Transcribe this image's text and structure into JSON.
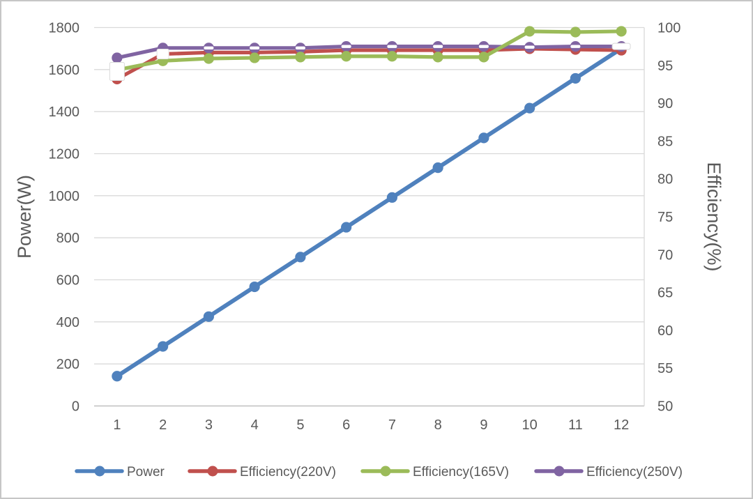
{
  "chart_data": {
    "type": "line",
    "title": "",
    "grid": true,
    "legend_position": "bottom",
    "categories": [
      "1",
      "2",
      "3",
      "4",
      "5",
      "6",
      "7",
      "8",
      "9",
      "10",
      "11",
      "12"
    ],
    "left_axis": {
      "title": "Power(W)",
      "min": 0,
      "max": 1800,
      "step": 200,
      "tick_labels": [
        "0",
        "200",
        "400",
        "600",
        "800",
        "1000",
        "1200",
        "1400",
        "1600",
        "1800"
      ]
    },
    "right_axis": {
      "title": "Efficiency(%)",
      "min": 50,
      "max": 100,
      "step": 5,
      "tick_labels": [
        "50",
        "55",
        "60",
        "65",
        "70",
        "75",
        "80",
        "85",
        "90",
        "95",
        "100"
      ]
    },
    "series": [
      {
        "name": "Power",
        "slug": "power",
        "axis": "left",
        "color": "#4F81BD",
        "marker": "circle",
        "values": [
          141.7,
          283.3,
          425.0,
          566.7,
          708.3,
          850.0,
          991.7,
          1133.3,
          1275.0,
          1416.7,
          1558.3,
          1700.0
        ]
      },
      {
        "name": "Efficiency(220V)",
        "slug": "efficiency-220v",
        "axis": "right",
        "color": "#C0504D",
        "marker": "circle-white-square",
        "values": [
          93.2,
          96.5,
          96.7,
          96.7,
          96.8,
          97.0,
          97.0,
          97.0,
          97.0,
          97.2,
          97.1,
          97.0
        ]
      },
      {
        "name": "Efficiency(165V)",
        "slug": "efficiency-165v",
        "axis": "right",
        "color": "#9BBB59",
        "marker": "circle",
        "values": [
          94.4,
          95.6,
          95.9,
          96.0,
          96.1,
          96.2,
          96.2,
          96.1,
          96.1,
          99.5,
          99.4,
          99.5
        ]
      },
      {
        "name": "Efficiency(250V)",
        "slug": "efficiency-250v",
        "axis": "right",
        "color": "#8064A2",
        "marker": "circle-white-dash",
        "values": [
          96.0,
          97.3,
          97.3,
          97.3,
          97.3,
          97.5,
          97.5,
          97.5,
          97.5,
          97.4,
          97.5,
          97.5
        ]
      }
    ],
    "legend_entries": [
      "Power",
      "Efficiency(220V)",
      "Efficiency(165V)",
      "Efficiency(250V)"
    ],
    "style_colors": {
      "gridline": "#d9d9d9",
      "axis_line": "#bfbfbf",
      "tick_label": "#595959",
      "axis_title": "#595959",
      "background": "#ffffff"
    }
  }
}
